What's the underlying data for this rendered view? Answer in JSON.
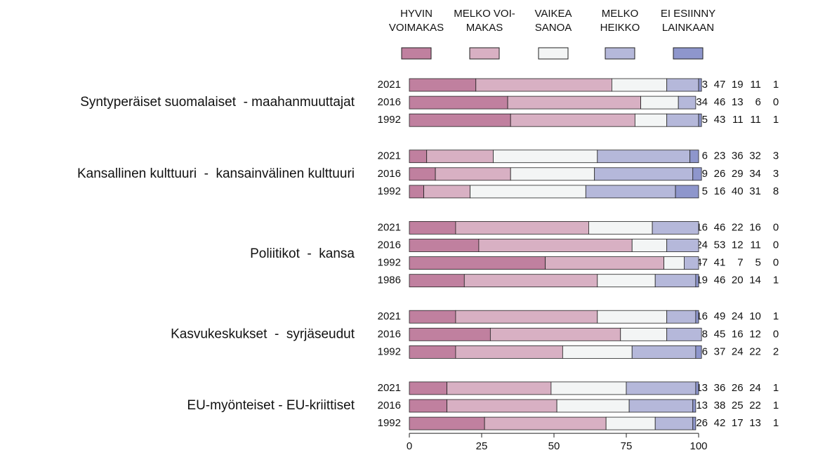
{
  "chart_data": {
    "type": "bar",
    "orientation": "horizontal",
    "stacked": true,
    "legend": [
      {
        "name": "HYVIN\nVOIMAKAS",
        "color": "#c0809f"
      },
      {
        "name": "MELKO VOI-\nMAKAS",
        "color": "#d8b0c3"
      },
      {
        "name": "VAIKEA\nSANOA",
        "color": "#f3f5f5"
      },
      {
        "name": "MELKO\nHEIKKO",
        "color": "#b5b8da"
      },
      {
        "name": "EI ESIINNY\nLAINKAAN",
        "color": "#8e96cc"
      }
    ],
    "xlim": [
      0,
      100
    ],
    "xticks": [
      0,
      25,
      50,
      75,
      100
    ],
    "groups": [
      {
        "name": "Syntyperäiset suomalaiset  - maahanmuuttajat",
        "categories": [
          "2021",
          "2016",
          "1992"
        ],
        "values": [
          [
            23,
            47,
            19,
            11,
            1
          ],
          [
            34,
            46,
            13,
            6,
            0
          ],
          [
            35,
            43,
            11,
            11,
            1
          ]
        ]
      },
      {
        "name": "Kansallinen kulttuuri  -  kansainvälinen kulttuuri",
        "categories": [
          "2021",
          "2016",
          "1992"
        ],
        "values": [
          [
            6,
            23,
            36,
            32,
            3
          ],
          [
            9,
            26,
            29,
            34,
            3
          ],
          [
            5,
            16,
            40,
            31,
            8
          ]
        ]
      },
      {
        "name": "Poliitikot  -  kansa",
        "categories": [
          "2021",
          "2016",
          "1992",
          "1986"
        ],
        "values": [
          [
            16,
            46,
            22,
            16,
            0
          ],
          [
            24,
            53,
            12,
            11,
            0
          ],
          [
            47,
            41,
            7,
            5,
            0
          ],
          [
            19,
            46,
            20,
            14,
            1
          ]
        ]
      },
      {
        "name": "Kasvukeskukset  -  syrjäseudut",
        "categories": [
          "2021",
          "2016",
          "1992"
        ],
        "values": [
          [
            16,
            49,
            24,
            10,
            1
          ],
          [
            28,
            45,
            16,
            12,
            0
          ],
          [
            16,
            37,
            24,
            22,
            2
          ]
        ]
      },
      {
        "name": "EU-myönteiset - EU-kriittiset",
        "categories": [
          "2021",
          "2016",
          "1992"
        ],
        "values": [
          [
            13,
            36,
            26,
            24,
            1
          ],
          [
            13,
            38,
            25,
            22,
            1
          ],
          [
            26,
            42,
            17,
            13,
            1
          ]
        ]
      }
    ]
  }
}
